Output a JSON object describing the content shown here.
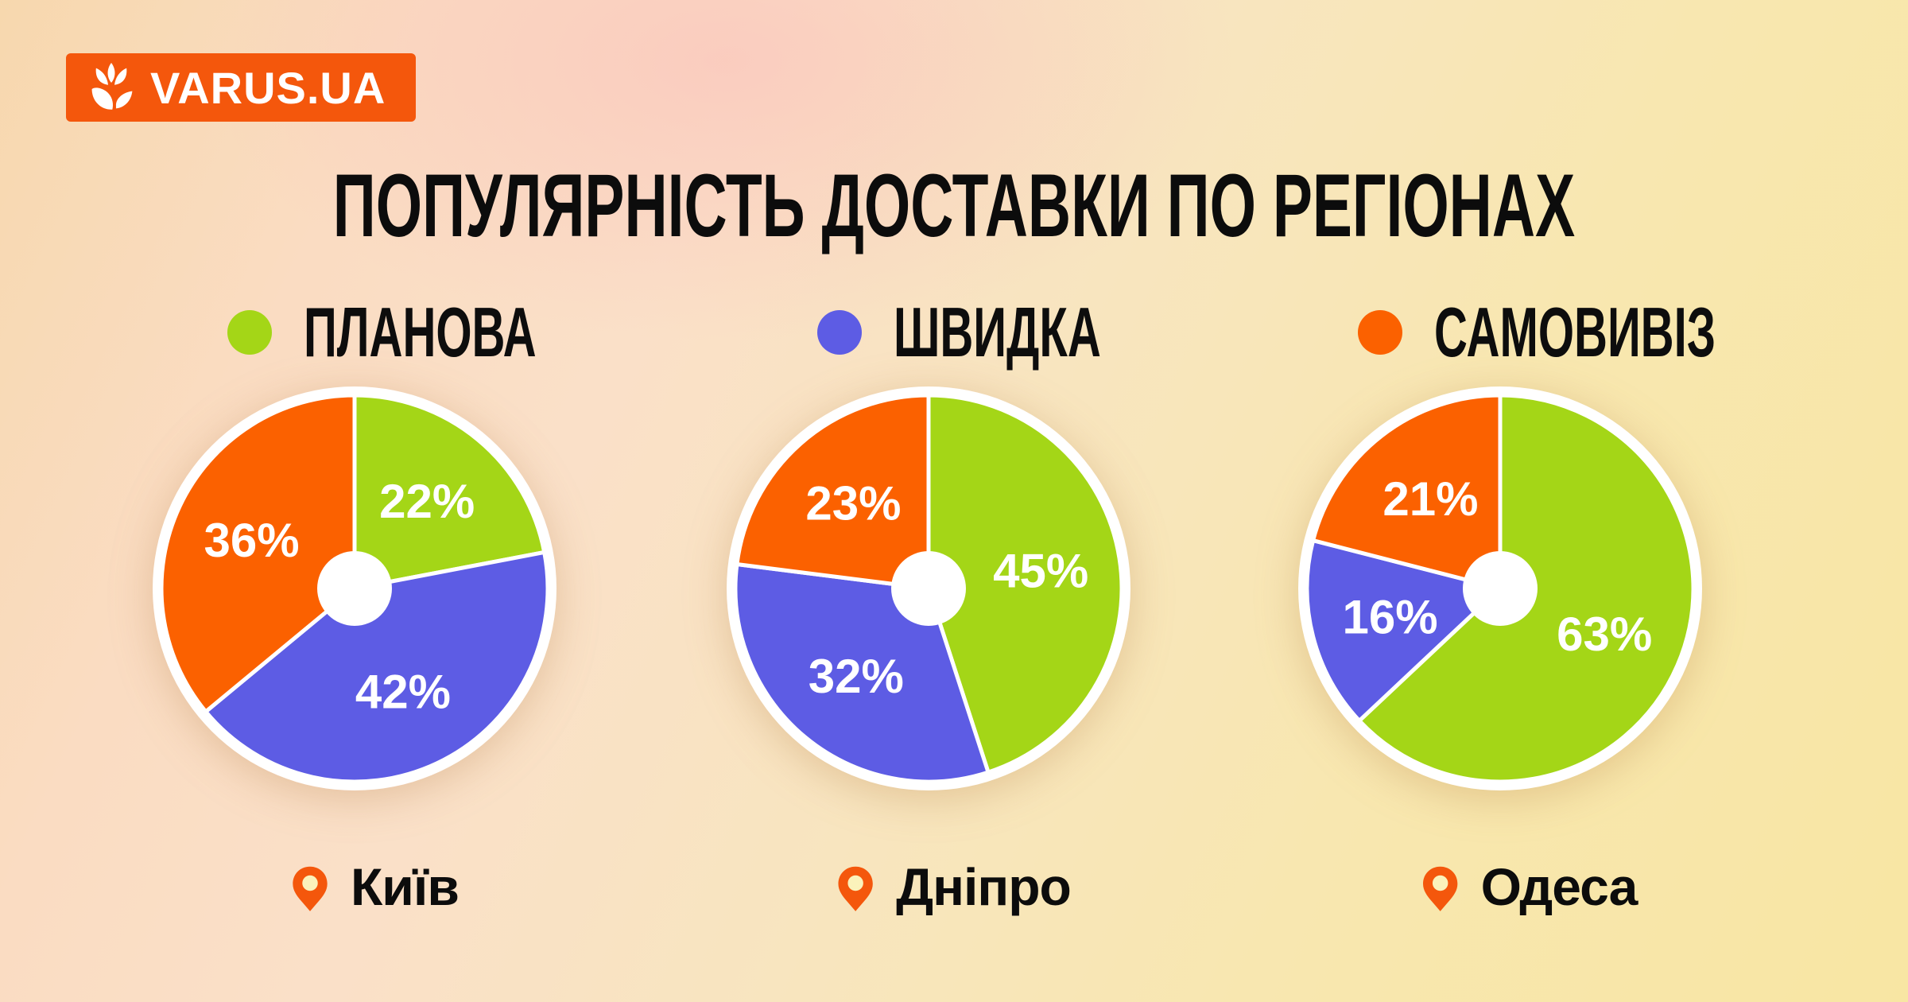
{
  "logo": {
    "text": "VARUS.UA",
    "bg_color": "#f4570c",
    "icon": "tulip-icon"
  },
  "title": "ПОПУЛЯРНІСТЬ ДОСТАВКИ ПО РЕГІОНАХ",
  "legend": [
    {
      "label": "ПЛАНОВА",
      "color": "#a4d617"
    },
    {
      "label": "ШВИДКА",
      "color": "#5d5ce4"
    },
    {
      "label": "САМОВИВІЗ",
      "color": "#fb6100"
    }
  ],
  "chart_data": [
    {
      "type": "pie",
      "city": "Київ",
      "categories": [
        "ПЛАНОВА",
        "ШВИДКА",
        "САМОВИВІЗ"
      ],
      "values": [
        22,
        42,
        36
      ],
      "labels": [
        "22%",
        "42%",
        "36%"
      ],
      "colors": [
        "#a4d617",
        "#5d5ce4",
        "#fb6100"
      ],
      "start_angle_deg": 0,
      "direction": "clockwise",
      "donut_hole": true,
      "label_color": "#ffffff"
    },
    {
      "type": "pie",
      "city": "Дніпро",
      "categories": [
        "ПЛАНОВА",
        "ШВИДКА",
        "САМОВИВІЗ"
      ],
      "values": [
        45,
        32,
        23
      ],
      "labels": [
        "45%",
        "32%",
        "23%"
      ],
      "colors": [
        "#a4d617",
        "#5d5ce4",
        "#fb6100"
      ],
      "start_angle_deg": 0,
      "direction": "clockwise",
      "donut_hole": true,
      "label_color": "#ffffff"
    },
    {
      "type": "pie",
      "city": "Одеса",
      "categories": [
        "ПЛАНОВА",
        "ШВИДКА",
        "САМОВИВІЗ"
      ],
      "values": [
        63,
        16,
        21
      ],
      "labels": [
        "63%",
        "16%",
        "21%"
      ],
      "colors": [
        "#a4d617",
        "#5d5ce4",
        "#fb6100"
      ],
      "start_angle_deg": 0,
      "direction": "clockwise",
      "donut_hole": true,
      "label_color": "#ffffff"
    }
  ],
  "pin": {
    "fill": "#f4570c",
    "inner": "#fbf2bb"
  }
}
